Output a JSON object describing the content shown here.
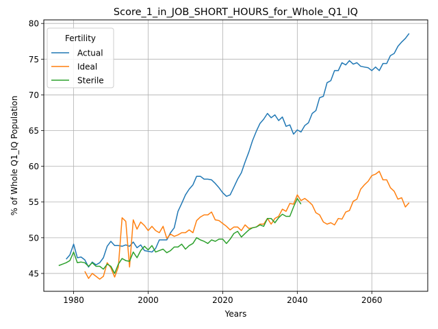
{
  "chart_data": {
    "type": "line",
    "title": "Score_1_in_JOB_SHORT_HOURS_for_Whole_Q1_IQ",
    "xlabel": "Years",
    "ylabel": "% of Whole Q1_IQ Population",
    "xlim": [
      1972,
      2075
    ],
    "ylim": [
      42.5,
      80.5
    ],
    "xticks": [
      1980,
      2000,
      2020,
      2040,
      2060
    ],
    "yticks": [
      45,
      50,
      55,
      60,
      65,
      70,
      75,
      80
    ],
    "grid": true,
    "legend": {
      "title": "Fertility",
      "placement": "top-left"
    },
    "series": [
      {
        "name": "Actual",
        "color": "#1f77b4",
        "x": [
          1978,
          1979,
          1980,
          1981,
          1982,
          1983,
          1984,
          1985,
          1986,
          1987,
          1988,
          1989,
          1990,
          1991,
          1992,
          1993,
          1994,
          1995,
          1996,
          1997,
          1998,
          1999,
          2000,
          2001,
          2002,
          2003,
          2004,
          2005,
          2006,
          2007,
          2008,
          2009,
          2010,
          2011,
          2012,
          2013,
          2014,
          2015,
          2016,
          2017,
          2018,
          2019,
          2020,
          2021,
          2022,
          2023,
          2024,
          2025,
          2026,
          2027,
          2028,
          2029,
          2030,
          2031,
          2032,
          2033,
          2034,
          2035,
          2036,
          2037,
          2038,
          2039,
          2040,
          2041,
          2042,
          2043,
          2044,
          2045,
          2046,
          2047,
          2048,
          2049,
          2050,
          2051,
          2052,
          2053,
          2054,
          2055,
          2056,
          2057,
          2058,
          2059,
          2060,
          2061,
          2062,
          2063,
          2064,
          2065,
          2066,
          2067,
          2068,
          2069,
          2070
        ],
        "y": [
          47.0,
          47.6,
          49.1,
          47.2,
          47.3,
          46.9,
          45.9,
          46.6,
          46.2,
          46.5,
          47.2,
          48.8,
          49.5,
          48.9,
          48.9,
          48.8,
          49.0,
          48.8,
          49.4,
          48.6,
          49.0,
          48.2,
          48.1,
          48.0,
          48.5,
          49.7,
          49.7,
          49.7,
          50.7,
          51.4,
          53.7,
          54.8,
          56.0,
          56.8,
          57.4,
          58.6,
          58.6,
          58.2,
          58.2,
          58.1,
          57.6,
          57.0,
          56.3,
          55.8,
          56.0,
          57.1,
          58.2,
          59.1,
          60.6,
          62.0,
          63.6,
          64.9,
          66.0,
          66.6,
          67.4,
          66.8,
          67.2,
          66.4,
          66.9,
          65.6,
          65.8,
          64.5,
          65.1,
          64.8,
          65.7,
          66.1,
          67.4,
          67.8,
          69.6,
          69.8,
          71.7,
          72.0,
          73.4,
          73.4,
          74.5,
          74.2,
          74.8,
          74.3,
          74.5,
          74.0,
          73.9,
          73.8,
          73.4,
          73.9,
          73.4,
          74.4,
          74.4,
          75.5,
          75.8,
          76.8,
          77.4,
          77.9,
          78.6
        ]
      },
      {
        "name": "Ideal",
        "color": "#ff7f0e",
        "x": [
          1983,
          1984,
          1985,
          1986,
          1987,
          1988,
          1989,
          1990,
          1991,
          1992,
          1993,
          1994,
          1995,
          1996,
          1997,
          1998,
          1999,
          2000,
          2001,
          2002,
          2003,
          2004,
          2005,
          2006,
          2007,
          2008,
          2009,
          2010,
          2011,
          2012,
          2013,
          2014,
          2015,
          2016,
          2017,
          2018,
          2019,
          2020,
          2021,
          2022,
          2023,
          2024,
          2025,
          2026,
          2027,
          2028,
          2029,
          2030,
          2031,
          2032,
          2033,
          2034,
          2035,
          2036,
          2037,
          2038,
          2039,
          2040,
          2041,
          2042,
          2043,
          2044,
          2045,
          2046,
          2047,
          2048,
          2049,
          2050,
          2051,
          2052,
          2053,
          2054,
          2055,
          2056,
          2057,
          2058,
          2059,
          2060,
          2061,
          2062,
          2063,
          2064,
          2065,
          2066,
          2067,
          2068,
          2069,
          2070
        ],
        "y": [
          45.3,
          44.3,
          45.0,
          44.6,
          44.2,
          44.6,
          46.5,
          45.8,
          44.5,
          45.9,
          52.8,
          52.3,
          45.9,
          52.5,
          51.2,
          52.2,
          51.7,
          51.0,
          51.6,
          51.0,
          50.7,
          51.6,
          49.9,
          50.5,
          50.2,
          50.4,
          50.7,
          50.7,
          51.1,
          50.7,
          52.4,
          52.9,
          53.2,
          53.2,
          53.6,
          52.5,
          52.4,
          52.0,
          51.6,
          51.1,
          51.5,
          51.5,
          51.0,
          51.8,
          51.3,
          51.4,
          51.5,
          51.9,
          51.9,
          52.7,
          51.9,
          52.7,
          53.0,
          54.0,
          53.7,
          54.8,
          54.7,
          56.0,
          55.2,
          55.5,
          55.1,
          54.6,
          53.5,
          53.2,
          52.2,
          51.9,
          52.1,
          51.8,
          52.7,
          52.6,
          53.6,
          53.8,
          55.1,
          55.4,
          56.8,
          57.4,
          57.9,
          58.7,
          58.9,
          59.3,
          58.1,
          58.1,
          57.0,
          56.5,
          55.4,
          55.6,
          54.3,
          54.9
        ]
      },
      {
        "name": "Sterile",
        "color": "#2ca02c",
        "x": [
          1976,
          1977,
          1978,
          1979,
          1980,
          1981,
          1982,
          1983,
          1984,
          1985,
          1986,
          1987,
          1988,
          1989,
          1990,
          1991,
          1992,
          1993,
          1994,
          1995,
          1996,
          1997,
          1998,
          1999,
          2000,
          2001,
          2002,
          2003,
          2004,
          2005,
          2006,
          2007,
          2008,
          2009,
          2010,
          2011,
          2012,
          2013,
          2014,
          2015,
          2016,
          2017,
          2018,
          2019,
          2020,
          2021,
          2022,
          2023,
          2024,
          2025,
          2026,
          2027,
          2028,
          2029,
          2030,
          2031,
          2032,
          2033,
          2034,
          2035,
          2036,
          2037,
          2038,
          2039,
          2040,
          2041
        ],
        "y": [
          46.1,
          46.3,
          46.5,
          46.8,
          48.0,
          46.5,
          46.6,
          46.5,
          46.0,
          46.5,
          46.0,
          46.0,
          45.6,
          46.3,
          46.0,
          45.0,
          46.3,
          47.1,
          46.8,
          46.7,
          48.0,
          47.2,
          48.2,
          48.8,
          48.3,
          48.9,
          48.0,
          48.2,
          48.4,
          47.9,
          48.2,
          48.7,
          48.7,
          49.1,
          48.4,
          48.9,
          49.2,
          50.0,
          49.7,
          49.5,
          49.2,
          49.7,
          49.5,
          49.8,
          49.8,
          49.2,
          49.8,
          50.6,
          50.9,
          50.1,
          50.6,
          51.1,
          51.4,
          51.5,
          51.8,
          51.6,
          52.7,
          52.7,
          52.1,
          52.8,
          53.3,
          53.0,
          53.0,
          54.3,
          55.5,
          54.7
        ]
      }
    ]
  }
}
